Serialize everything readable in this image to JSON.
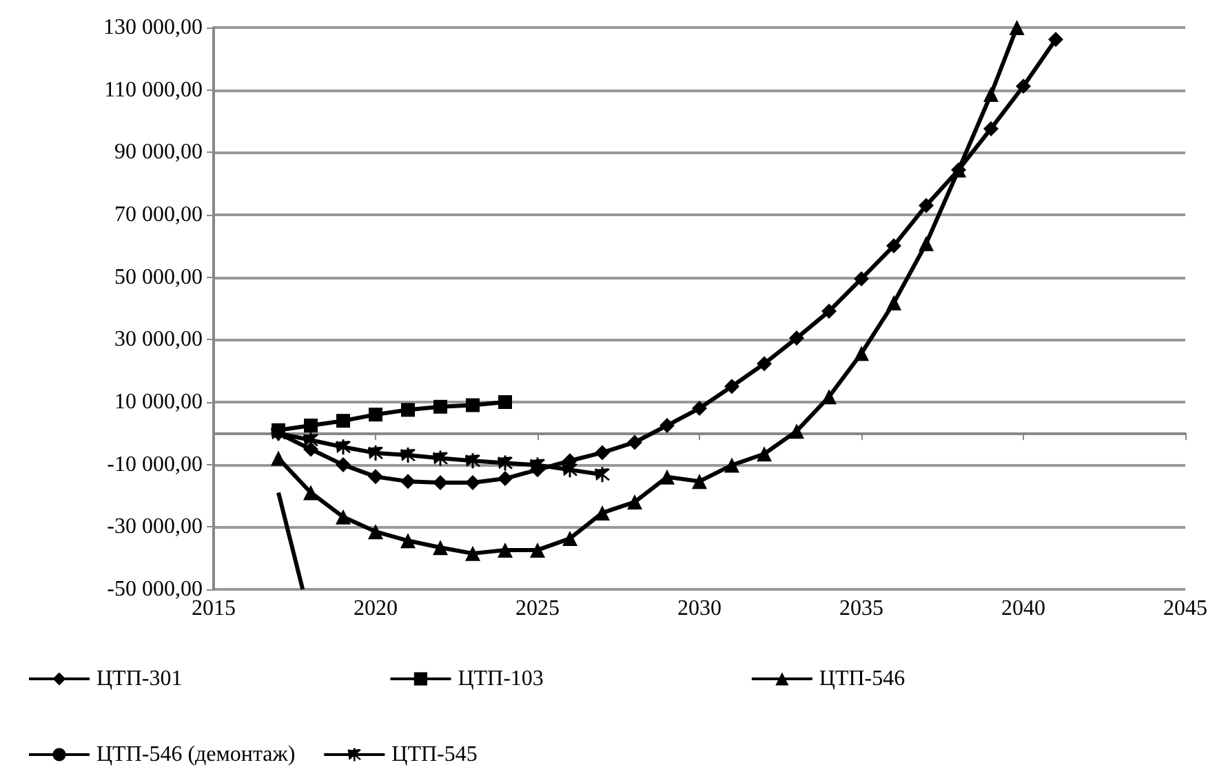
{
  "chart_data": {
    "type": "line",
    "x": [
      2017,
      2018,
      2019,
      2020,
      2021,
      2022,
      2023,
      2024,
      2025,
      2026,
      2027,
      2028,
      2029,
      2030,
      2031,
      2032,
      2033,
      2034,
      2035,
      2036,
      2037,
      2038,
      2039,
      2040,
      2041
    ],
    "series": [
      {
        "name": "ЦТП-301",
        "color": "#000000",
        "marker": "diamond",
        "values": [
          0,
          -5100,
          -10100,
          -13900,
          -15400,
          -15800,
          -15800,
          -14500,
          -11700,
          -8800,
          -6200,
          -2900,
          2500,
          8000,
          15000,
          22300,
          30500,
          39100,
          49500,
          60100,
          73000,
          84400,
          97600,
          111200,
          126200
        ]
      },
      {
        "name": "ЦТП-103",
        "color": "#000000",
        "marker": "square",
        "values": [
          1000,
          2500,
          4000,
          6000,
          7500,
          8500,
          9000,
          10000,
          null,
          null,
          null,
          null,
          null,
          null,
          null,
          null,
          null,
          null,
          null,
          null,
          null,
          null,
          null,
          null,
          null
        ]
      },
      {
        "name": "ЦТП-546",
        "color": "#000000",
        "marker": "triangle",
        "x": [
          2017,
          2018,
          2019,
          2020,
          2021,
          2022,
          2023,
          2024,
          2025,
          2026,
          2027,
          2028,
          2029,
          2030,
          2031,
          2032,
          2033,
          2034,
          2035,
          2036,
          2037,
          2038,
          2039,
          2039.8
        ],
        "values": [
          -8000,
          -19000,
          -26800,
          -31500,
          -34400,
          -36600,
          -38500,
          -37400,
          -37400,
          -33700,
          -25500,
          -22000,
          -14000,
          -15400,
          -10200,
          -6600,
          700,
          11700,
          25600,
          41800,
          60800,
          84400,
          108600,
          130000
        ]
      },
      {
        "name": "ЦТП-546 (демонтаж)",
        "color": "#000000",
        "marker": "none",
        "x": [
          2017,
          2017.75
        ],
        "values": [
          -19000,
          -50000
        ]
      },
      {
        "name": "ЦТП-545",
        "color": "#000000",
        "marker": "cross",
        "values": [
          0,
          -2200,
          -4400,
          -6300,
          -7000,
          -8000,
          -8800,
          -9500,
          -10200,
          -11700,
          -13200,
          null,
          null,
          null,
          null,
          null,
          null,
          null,
          null,
          null,
          null,
          null,
          null,
          null,
          null
        ]
      }
    ],
    "xlim": [
      2015,
      2045
    ],
    "xticks": [
      2015,
      2020,
      2025,
      2030,
      2035,
      2040,
      2045
    ],
    "ylim": [
      -50000,
      130000
    ],
    "yticks": [
      {
        "value": -50000,
        "label": "-50 000,00"
      },
      {
        "value": -30000,
        "label": "-30 000,00"
      },
      {
        "value": -10000,
        "label": "-10 000,00"
      },
      {
        "value": 10000,
        "label": "10 000,00"
      },
      {
        "value": 30000,
        "label": "30 000,00"
      },
      {
        "value": 50000,
        "label": "50 000,00"
      },
      {
        "value": 70000,
        "label": "70 000,00"
      },
      {
        "value": 90000,
        "label": "90 000,00"
      },
      {
        "value": 110000,
        "label": "110 000,00"
      },
      {
        "value": 130000,
        "label": "130 000,00"
      }
    ],
    "grid": "y",
    "legend": "bottom",
    "line_style": "solid"
  }
}
